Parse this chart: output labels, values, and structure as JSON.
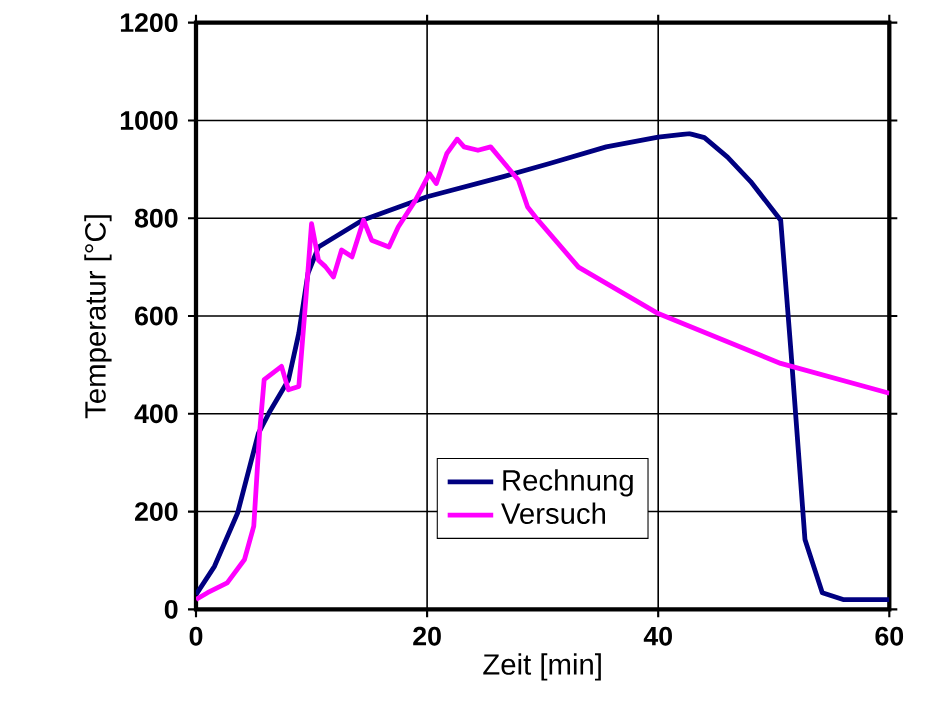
{
  "chart_data": {
    "type": "line",
    "xlabel": "Zeit [min]",
    "ylabel": "Temperatur [°C]",
    "xlim": [
      0,
      60
    ],
    "ylim": [
      0,
      1200
    ],
    "xticks": [
      0,
      20,
      40,
      60
    ],
    "yticks": [
      0,
      200,
      400,
      600,
      800,
      1000,
      1200
    ],
    "grid": true,
    "legend": "bottom",
    "marker": "none",
    "line_style": "solid",
    "series": [
      {
        "name": "Rechnung",
        "color": "#000080",
        "x": [
          0,
          1.6,
          3.6,
          5.4,
          6.3,
          8.0,
          8.9,
          9.7,
          10.6,
          14.4,
          20,
          26.6,
          30.6,
          35.5,
          40,
          42.7,
          44,
          46,
          48,
          50.6,
          51.5,
          52.7,
          54.2,
          56,
          60
        ],
        "values": [
          30,
          88,
          197,
          360,
          401,
          469,
          565,
          688,
          741,
          796,
          844,
          885,
          912,
          946,
          966,
          973,
          965,
          925,
          875,
          796,
          524,
          143,
          34,
          20,
          20
        ]
      },
      {
        "name": "Versuch",
        "color": "#ff00ff",
        "x": [
          0,
          1.0,
          2.7,
          4.2,
          5.0,
          5.5,
          5.9,
          7.4,
          8.0,
          8.9,
          9.5,
          10.0,
          10.6,
          11.2,
          11.9,
          12.6,
          13.5,
          14.5,
          15.2,
          16.7,
          17.5,
          19.0,
          20.2,
          20.8,
          21.7,
          22.6,
          23.2,
          24.4,
          25.5,
          26.7,
          27.9,
          28.7,
          29.6,
          33.1,
          40,
          50.6,
          60
        ],
        "values": [
          20,
          34,
          54,
          102,
          170,
          361,
          470,
          497,
          449,
          456,
          633,
          789,
          714,
          701,
          680,
          735,
          721,
          796,
          755,
          741,
          782,
          837,
          891,
          871,
          932,
          962,
          946,
          939,
          946,
          912,
          878,
          823,
          796,
          700,
          605,
          503,
          442
        ]
      }
    ]
  }
}
